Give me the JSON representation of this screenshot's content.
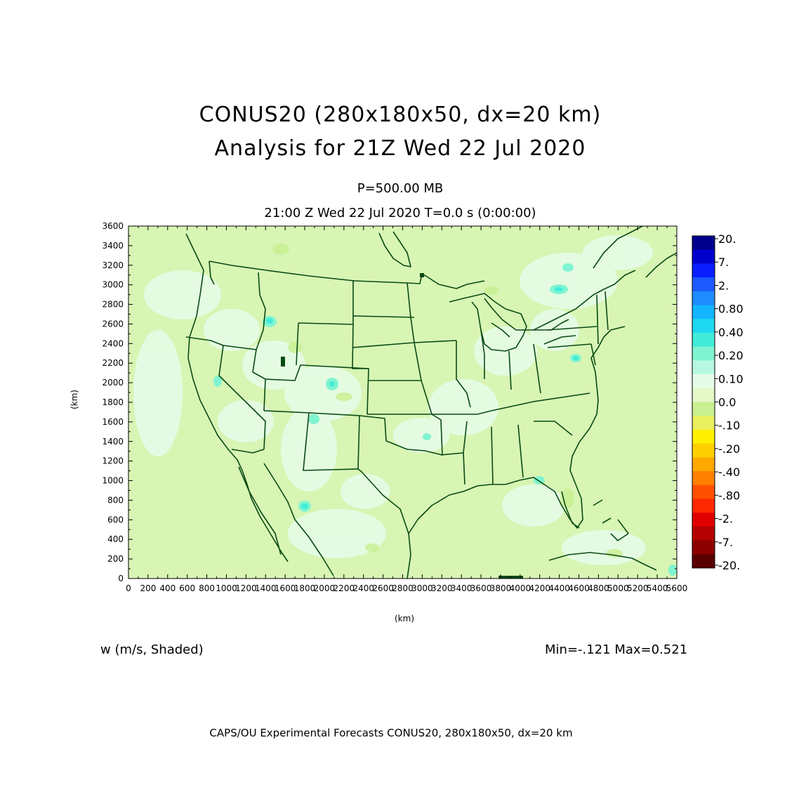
{
  "title": {
    "line1": "CONUS20 (280x180x50, dx=20 km)",
    "line2": "Analysis for 21Z Wed 22 Jul 2020"
  },
  "subtitle": {
    "level": "P=500.00 MB",
    "time": "21:00 Z Wed 22 Jul 2020    T=0.0 s (0:00:00)"
  },
  "axes": {
    "x_unit": "(km)",
    "y_unit": "(km)",
    "x_ticks": [
      "0",
      "200",
      "400",
      "600",
      "800",
      "1000",
      "1200",
      "1400",
      "1600",
      "1800",
      "2000",
      "2200",
      "2400",
      "2600",
      "2800",
      "3000",
      "3200",
      "3400",
      "3600",
      "3800",
      "4000",
      "4200",
      "4400",
      "4600",
      "4800",
      "5000",
      "5200",
      "5400",
      "5600"
    ],
    "y_ticks": [
      "0",
      "200",
      "400",
      "600",
      "800",
      "1000",
      "1200",
      "1400",
      "1600",
      "1800",
      "2000",
      "2200",
      "2400",
      "2600",
      "2800",
      "3000",
      "3200",
      "3400",
      "3600"
    ],
    "x_range_km": [
      0,
      5600
    ],
    "y_range_km": [
      0,
      3600
    ]
  },
  "field_label": "w (m/s, Shaded)",
  "min_max": "Min=-.121  Max=0.521",
  "footer": "CAPS/OU Experimental Forecasts   CONUS20, 280x180x50, dx=20 km",
  "colorbar": {
    "labels": [
      "20.",
      "7.",
      "2.",
      "0.80",
      "0.40",
      "0.20",
      "0.10",
      "0.0",
      "-.10",
      "-.20",
      "-.40",
      "-.80",
      "-2.",
      "-7.",
      "-20."
    ],
    "colors": [
      "#00008c",
      "#0000cd",
      "#0a1eff",
      "#1e5aff",
      "#1e8cff",
      "#14b4ff",
      "#1ed8f0",
      "#40ecd8",
      "#80f4d0",
      "#b8f8e0",
      "#e6fce8",
      "#e4f8c8",
      "#c8f090",
      "#e8f060",
      "#fff000",
      "#ffd000",
      "#ffa800",
      "#ff8000",
      "#ff5000",
      "#ff2800",
      "#e00000",
      "#b40000",
      "#8c0000",
      "#5a0000"
    ]
  },
  "map": {
    "background_color": "#d8f5b4",
    "border_color": "#0a4a14"
  }
}
